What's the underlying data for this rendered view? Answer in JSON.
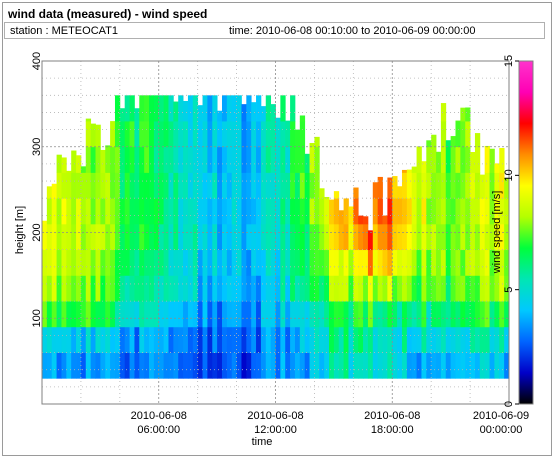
{
  "header": {
    "title": "wind data (measured) - wind speed",
    "station": "station : METEOCAT1",
    "time_range": "time: 2010-06-08 00:10:00 to 2010-06-09 00:00:00"
  },
  "chart_data": {
    "type": "heatmap",
    "xlabel": "time",
    "ylabel": "height [m]",
    "colorbar_label": "wind speed [m/s]",
    "x_ticks": [
      {
        "hour": 6,
        "line1": "2010-06-08",
        "line2": "06:00:00"
      },
      {
        "hour": 12,
        "line1": "2010-06-08",
        "line2": "12:00:00"
      },
      {
        "hour": 18,
        "line1": "2010-06-08",
        "line2": "18:00:00"
      },
      {
        "hour": 24,
        "line1": "2010-06-09",
        "line2": "00:00:00"
      }
    ],
    "xlim_hours": [
      0,
      24
    ],
    "y_ticks": [
      100,
      200,
      300,
      400
    ],
    "ylim": [
      0,
      400
    ],
    "colorbar_ticks": [
      0,
      5,
      10,
      15
    ],
    "colorbar_range": [
      0,
      15
    ],
    "grid": true,
    "colormap": [
      "#000000",
      "#0000c8",
      "#0064ff",
      "#00c8ff",
      "#00e6b4",
      "#00ff3c",
      "#b4ff00",
      "#ffff00",
      "#ff8c00",
      "#ff0000",
      "#ff00b4",
      "#ff33cc"
    ],
    "height_levels_m": [
      45,
      75,
      105,
      135,
      165,
      195,
      225,
      255,
      285,
      315,
      345
    ],
    "time_profile": [
      {
        "hour": 0,
        "top": 240,
        "speeds": [
          3.2,
          4.2,
          6.8,
          7.8,
          8.3,
          8.4,
          8.5
        ]
      },
      {
        "hour": 2,
        "top": 300,
        "speeds": [
          3.2,
          4.2,
          6.8,
          7.8,
          8.3,
          8.5,
          8.4,
          8.2,
          8.0
        ]
      },
      {
        "hour": 3,
        "top": 320,
        "speeds": [
          3.0,
          3.8,
          6.2,
          7.0,
          7.6,
          7.8,
          7.8,
          7.6,
          7.5,
          7.4
        ]
      },
      {
        "hour": 5,
        "top": 370,
        "speeds": [
          2.8,
          3.2,
          5.0,
          5.8,
          6.2,
          6.5,
          6.6,
          6.6,
          6.5,
          6.5,
          6.4
        ]
      },
      {
        "hour": 7,
        "top": 370,
        "speeds": [
          2.4,
          2.9,
          3.8,
          4.4,
          4.8,
          5.0,
          5.1,
          5.1,
          5.0,
          5.0,
          5.0
        ]
      },
      {
        "hour": 9,
        "top": 370,
        "speeds": [
          2.0,
          2.5,
          3.2,
          3.8,
          4.0,
          4.1,
          4.2,
          4.2,
          4.1,
          4.1,
          4.0
        ]
      },
      {
        "hour": 11,
        "top": 370,
        "speeds": [
          2.5,
          2.9,
          3.2,
          3.5,
          3.8,
          4.0,
          4.1,
          4.1,
          4.1,
          4.0,
          4.0
        ]
      },
      {
        "hour": 13,
        "top": 350,
        "speeds": [
          3.2,
          3.5,
          4.5,
          5.2,
          5.6,
          6.0,
          6.1,
          6.2,
          6.2,
          6.1,
          6.0
        ]
      },
      {
        "hour": 15,
        "top": 240,
        "speeds": [
          5.0,
          5.5,
          6.5,
          7.5,
          8.3,
          9.0,
          9.5
        ]
      },
      {
        "hour": 17,
        "top": 230,
        "speeds": [
          5.5,
          5.8,
          6.8,
          8.5,
          10.5,
          11.5,
          12.0
        ]
      },
      {
        "hour": 19,
        "top": 265,
        "speeds": [
          4.5,
          5.0,
          6.2,
          7.8,
          8.8,
          9.5,
          9.8,
          9.5
        ]
      },
      {
        "hour": 21,
        "top": 340,
        "speeds": [
          3.5,
          4.5,
          6.2,
          7.0,
          7.4,
          7.6,
          7.6,
          7.5,
          7.4,
          7.2
        ]
      },
      {
        "hour": 22.5,
        "top": 300,
        "speeds": [
          3.8,
          4.8,
          6.5,
          7.5,
          7.9,
          8.2,
          8.3,
          8.2
        ]
      },
      {
        "hour": 24,
        "top": 260,
        "speeds": [
          4.2,
          5.0,
          7.0,
          8.0,
          8.5,
          8.8,
          8.9
        ]
      }
    ]
  }
}
